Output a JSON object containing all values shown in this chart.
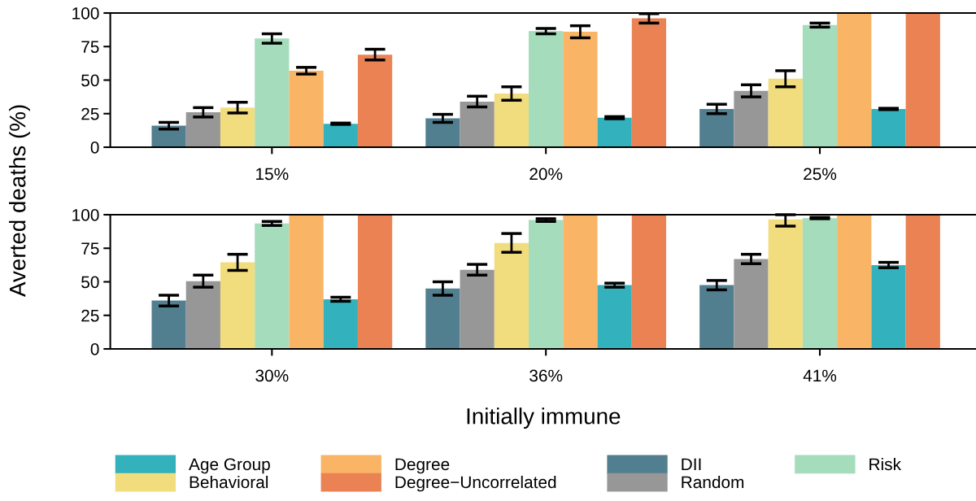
{
  "chart_data": [
    {
      "type": "bar",
      "categories": [
        "15%",
        "20%",
        "25%"
      ],
      "ylabel": "Averted deaths (%)",
      "ylim": [
        0,
        100
      ],
      "yticks": [
        0,
        25,
        50,
        75,
        100
      ],
      "grid": false,
      "series": [
        {
          "color": "#527f8f",
          "values": [
            16,
            21.5,
            28.5
          ],
          "errors": [
            2.5,
            3,
            3.5
          ]
        },
        {
          "color": "#979797",
          "values": [
            26,
            34,
            42
          ],
          "errors": [
            3.5,
            4,
            4.5
          ]
        },
        {
          "color": "#f2dd7e",
          "values": [
            29.5,
            40,
            51
          ],
          "errors": [
            4,
            5,
            6
          ]
        },
        {
          "color": "#a4dcbc",
          "values": [
            81,
            86.5,
            91
          ],
          "errors": [
            3.5,
            2,
            1.5
          ]
        },
        {
          "color": "#f9b466",
          "values": [
            57,
            86,
            100
          ],
          "errors": [
            2.5,
            4.5,
            null
          ]
        },
        {
          "color": "#33b1bc",
          "values": [
            17.5,
            22,
            28.5
          ],
          "errors": [
            0.5,
            0.8,
            0.5
          ]
        },
        {
          "color": "#ea8254",
          "values": [
            69,
            96,
            100
          ],
          "errors": [
            4,
            3.5,
            null
          ]
        }
      ]
    },
    {
      "type": "bar",
      "categories": [
        "30%",
        "36%",
        "41%"
      ],
      "xlabel": "Initially immune",
      "ylim": [
        0,
        100
      ],
      "yticks": [
        0,
        25,
        50,
        75,
        100
      ],
      "grid": false,
      "legend": "bottom",
      "series": [
        {
          "name": "DII",
          "color": "#527f8f",
          "values": [
            36,
            45,
            47.5
          ],
          "errors": [
            4,
            5,
            3.5
          ]
        },
        {
          "name": "Random",
          "color": "#979797",
          "values": [
            50.5,
            59,
            67
          ],
          "errors": [
            4.5,
            4,
            3.5
          ]
        },
        {
          "name": "Behavioral",
          "color": "#f2dd7e",
          "values": [
            64.5,
            79,
            96.5
          ],
          "errors": [
            6,
            7,
            [
              91.5,
              100
            ]
          ]
        },
        {
          "name": "Risk",
          "color": "#a4dcbc",
          "values": [
            93.5,
            96,
            97.5
          ],
          "errors": [
            1.5,
            1,
            0.5
          ]
        },
        {
          "name": "Degree",
          "color": "#f9b466",
          "values": [
            100,
            100,
            100
          ],
          "errors": [
            null,
            null,
            null
          ]
        },
        {
          "name": "Age Group",
          "color": "#33b1bc",
          "values": [
            37,
            47.5,
            62.5
          ],
          "errors": [
            1.5,
            1.5,
            2
          ]
        },
        {
          "name": "Degree−Uncorrelated",
          "color": "#ea8254",
          "values": [
            100,
            100,
            100
          ],
          "errors": [
            null,
            null,
            null
          ]
        }
      ]
    }
  ]
}
